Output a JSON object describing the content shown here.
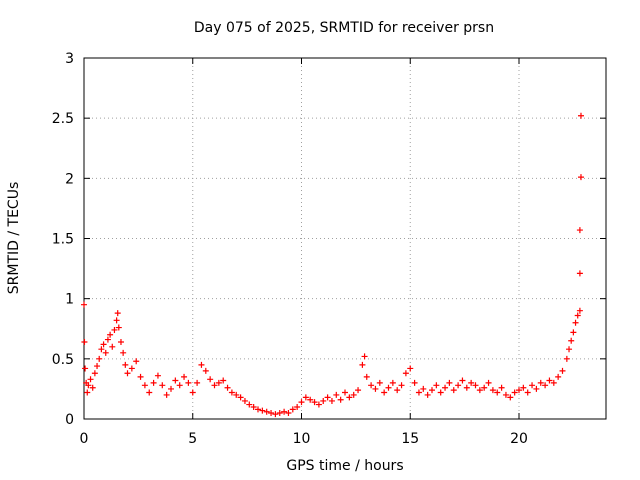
{
  "chart_data": {
    "type": "scatter",
    "title": "Day 075 of 2025, SRMTID for receiver prsn",
    "xlabel": "GPS time / hours",
    "ylabel": "SRMTID / TECUs",
    "xlim": [
      0,
      24
    ],
    "ylim": [
      0,
      3
    ],
    "xticks": [
      "0",
      "5",
      "10",
      "15",
      "20"
    ],
    "yticks": [
      "0",
      "0.5",
      "1",
      "1.5",
      "2",
      "2.5",
      "3"
    ],
    "xtick_values": [
      0,
      5,
      10,
      15,
      20
    ],
    "ytick_values": [
      0,
      0.5,
      1,
      1.5,
      2,
      2.5,
      3
    ],
    "grid": true,
    "marker": "plus",
    "color": "#ff0000",
    "series": [
      {
        "name": "SRMTID",
        "points": [
          [
            0.0,
            0.95
          ],
          [
            0.02,
            0.64
          ],
          [
            0.05,
            0.42
          ],
          [
            0.1,
            0.3
          ],
          [
            0.15,
            0.22
          ],
          [
            0.2,
            0.28
          ],
          [
            0.3,
            0.33
          ],
          [
            0.4,
            0.26
          ],
          [
            0.5,
            0.38
          ],
          [
            0.6,
            0.44
          ],
          [
            0.7,
            0.5
          ],
          [
            0.8,
            0.58
          ],
          [
            0.9,
            0.62
          ],
          [
            1.0,
            0.55
          ],
          [
            1.1,
            0.66
          ],
          [
            1.2,
            0.7
          ],
          [
            1.3,
            0.6
          ],
          [
            1.4,
            0.74
          ],
          [
            1.5,
            0.82
          ],
          [
            1.55,
            0.88
          ],
          [
            1.6,
            0.76
          ],
          [
            1.7,
            0.64
          ],
          [
            1.8,
            0.55
          ],
          [
            1.9,
            0.45
          ],
          [
            2.0,
            0.38
          ],
          [
            2.2,
            0.42
          ],
          [
            2.4,
            0.48
          ],
          [
            2.6,
            0.35
          ],
          [
            2.8,
            0.28
          ],
          [
            3.0,
            0.22
          ],
          [
            3.2,
            0.3
          ],
          [
            3.4,
            0.36
          ],
          [
            3.6,
            0.28
          ],
          [
            3.8,
            0.2
          ],
          [
            4.0,
            0.25
          ],
          [
            4.2,
            0.32
          ],
          [
            4.4,
            0.28
          ],
          [
            4.6,
            0.35
          ],
          [
            4.8,
            0.3
          ],
          [
            5.0,
            0.22
          ],
          [
            5.2,
            0.3
          ],
          [
            5.4,
            0.45
          ],
          [
            5.6,
            0.4
          ],
          [
            5.8,
            0.33
          ],
          [
            6.0,
            0.28
          ],
          [
            6.2,
            0.3
          ],
          [
            6.4,
            0.32
          ],
          [
            6.6,
            0.26
          ],
          [
            6.8,
            0.22
          ],
          [
            7.0,
            0.2
          ],
          [
            7.2,
            0.18
          ],
          [
            7.4,
            0.15
          ],
          [
            7.6,
            0.12
          ],
          [
            7.8,
            0.1
          ],
          [
            8.0,
            0.08
          ],
          [
            8.2,
            0.07
          ],
          [
            8.4,
            0.06
          ],
          [
            8.6,
            0.05
          ],
          [
            8.8,
            0.04
          ],
          [
            9.0,
            0.05
          ],
          [
            9.2,
            0.06
          ],
          [
            9.4,
            0.05
          ],
          [
            9.6,
            0.08
          ],
          [
            9.8,
            0.1
          ],
          [
            10.0,
            0.14
          ],
          [
            10.2,
            0.18
          ],
          [
            10.4,
            0.16
          ],
          [
            10.6,
            0.14
          ],
          [
            10.8,
            0.12
          ],
          [
            11.0,
            0.15
          ],
          [
            11.2,
            0.18
          ],
          [
            11.4,
            0.15
          ],
          [
            11.6,
            0.2
          ],
          [
            11.8,
            0.16
          ],
          [
            12.0,
            0.22
          ],
          [
            12.2,
            0.18
          ],
          [
            12.4,
            0.2
          ],
          [
            12.6,
            0.24
          ],
          [
            12.8,
            0.45
          ],
          [
            12.9,
            0.52
          ],
          [
            13.0,
            0.35
          ],
          [
            13.2,
            0.28
          ],
          [
            13.4,
            0.25
          ],
          [
            13.6,
            0.3
          ],
          [
            13.8,
            0.22
          ],
          [
            14.0,
            0.26
          ],
          [
            14.2,
            0.3
          ],
          [
            14.4,
            0.24
          ],
          [
            14.6,
            0.28
          ],
          [
            14.8,
            0.38
          ],
          [
            15.0,
            0.42
          ],
          [
            15.2,
            0.3
          ],
          [
            15.4,
            0.22
          ],
          [
            15.6,
            0.25
          ],
          [
            15.8,
            0.2
          ],
          [
            16.0,
            0.24
          ],
          [
            16.2,
            0.28
          ],
          [
            16.4,
            0.22
          ],
          [
            16.6,
            0.26
          ],
          [
            16.8,
            0.3
          ],
          [
            17.0,
            0.24
          ],
          [
            17.2,
            0.28
          ],
          [
            17.4,
            0.32
          ],
          [
            17.6,
            0.26
          ],
          [
            17.8,
            0.3
          ],
          [
            18.0,
            0.28
          ],
          [
            18.2,
            0.24
          ],
          [
            18.4,
            0.26
          ],
          [
            18.6,
            0.3
          ],
          [
            18.8,
            0.24
          ],
          [
            19.0,
            0.22
          ],
          [
            19.2,
            0.26
          ],
          [
            19.4,
            0.2
          ],
          [
            19.6,
            0.18
          ],
          [
            19.8,
            0.22
          ],
          [
            20.0,
            0.24
          ],
          [
            20.2,
            0.26
          ],
          [
            20.4,
            0.22
          ],
          [
            20.6,
            0.28
          ],
          [
            20.8,
            0.25
          ],
          [
            21.0,
            0.3
          ],
          [
            21.2,
            0.28
          ],
          [
            21.4,
            0.32
          ],
          [
            21.6,
            0.3
          ],
          [
            21.8,
            0.35
          ],
          [
            22.0,
            0.4
          ],
          [
            22.2,
            0.5
          ],
          [
            22.3,
            0.58
          ],
          [
            22.4,
            0.65
          ],
          [
            22.5,
            0.72
          ],
          [
            22.6,
            0.8
          ],
          [
            22.7,
            0.86
          ],
          [
            22.8,
            0.9
          ],
          [
            22.8,
            1.21
          ],
          [
            22.8,
            1.57
          ],
          [
            22.85,
            2.01
          ],
          [
            22.85,
            2.52
          ]
        ]
      }
    ]
  }
}
